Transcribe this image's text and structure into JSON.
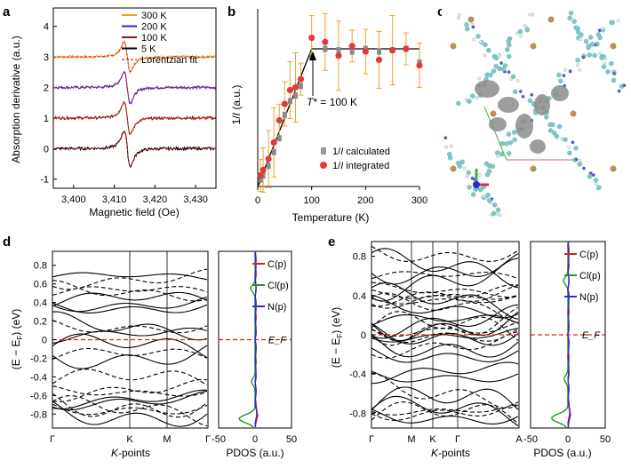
{
  "chart_data": [
    {
      "panel": "a",
      "type": "line",
      "xlabel": "Magnetic field (Oe)",
      "ylabel": "Absorption derivative (a.u.)",
      "xlim": [
        3395,
        3435
      ],
      "ylim": [
        -1.3,
        4.6
      ],
      "xticks": [
        "3,400",
        "3,410",
        "3,420",
        "3,430"
      ],
      "yticks": [
        "-1",
        "0",
        "1",
        "2",
        "3",
        "4"
      ],
      "legend": [
        "300 K",
        "200 K",
        "100 K",
        "5 K",
        "Lorentzian fit"
      ],
      "series": [
        {
          "name": "300 K",
          "color": "#f39c24",
          "baseline": 3.0,
          "amplitude": 0.95
        },
        {
          "name": "200 K",
          "color": "#2a2ad6",
          "baseline": 2.0,
          "amplitude": 1.0
        },
        {
          "name": "100 K",
          "color": "#8b1a1a",
          "baseline": 1.0,
          "amplitude": 1.05
        },
        {
          "name": "5 K",
          "color": "#000000",
          "baseline": 0.0,
          "amplitude": 1.15
        },
        {
          "name": "Lorentzian fit",
          "color": "#e02020",
          "style": "dashed"
        }
      ],
      "center_field": 3413.2
    },
    {
      "panel": "b",
      "type": "scatter",
      "xlabel": "Temperature (K)",
      "ylabel": "1/I (a.u.)",
      "xlim": [
        0,
        300
      ],
      "xticks": [
        "0",
        "100",
        "200",
        "300"
      ],
      "annotation": "T* = 100 K",
      "legend": [
        "1/I calculated",
        "1/I integrated"
      ],
      "calculated": {
        "x": [
          5,
          10,
          20,
          30,
          40,
          50,
          60,
          70,
          80,
          100,
          125,
          150,
          175,
          200,
          225,
          250,
          275,
          300
        ],
        "y": [
          0.05,
          0.08,
          0.15,
          0.25,
          0.35,
          0.52,
          0.62,
          0.66,
          0.73,
          0.95,
          1.0,
          0.99,
          0.98,
          1.0,
          0.98,
          0.99,
          1.0,
          0.9
        ]
      },
      "integrated": {
        "x": [
          5,
          10,
          20,
          30,
          40,
          50,
          60,
          70,
          80,
          100,
          125,
          150,
          175,
          200,
          225,
          250,
          275,
          300
        ],
        "y": [
          0.08,
          0.12,
          0.2,
          0.32,
          0.48,
          0.6,
          0.7,
          0.72,
          0.78,
          1.08,
          1.05,
          0.95,
          1.02,
          0.98,
          0.92,
          0.99,
          1.0,
          0.88
        ]
      },
      "fit_line": {
        "x": [
          0,
          100,
          300
        ],
        "y": [
          0.0,
          1.0,
          1.0
        ]
      }
    },
    {
      "panel": "d",
      "type": "line",
      "subtype": "band-structure",
      "xlabel": "K-points",
      "ylabel": "(E − E_F) (eV)",
      "ylim": [
        -0.95,
        0.95
      ],
      "yticks": [
        "0.8",
        "0.6",
        "0.4",
        "0.2",
        "0",
        "-0.2",
        "-0.4",
        "-0.6",
        "-0.8"
      ],
      "kpoints": [
        "Γ",
        "K",
        "M",
        "Γ"
      ],
      "fermi_label": "E_F",
      "pdos_xlabel": "PDOS (a.u.)",
      "pdos_xticks": [
        "-50",
        "0",
        "50"
      ],
      "pdos_legend": [
        "C(p)",
        "Cl(p)",
        "N(p)"
      ],
      "pdos_colors": [
        "#e02020",
        "#1f9a1f",
        "#2a2ad6"
      ]
    },
    {
      "panel": "e",
      "type": "line",
      "subtype": "band-structure",
      "xlabel": "K-points",
      "ylabel": "(E − E_F) (eV)",
      "ylim": [
        -0.95,
        0.95
      ],
      "yticks": [
        "0.8",
        "0.4",
        "0",
        "-0.4",
        "-0.8"
      ],
      "kpoints": [
        "Γ",
        "M",
        "K",
        "Γ",
        "A"
      ],
      "fermi_label": "E_F",
      "pdos_xlabel": "PDOS (a.u.)",
      "pdos_xticks": [
        "-50",
        "0",
        "50"
      ],
      "pdos_legend": [
        "C(p)",
        "Cl(p)",
        "N(p)"
      ],
      "pdos_colors": [
        "#e02020",
        "#1f9a1f",
        "#2a2ad6"
      ]
    }
  ],
  "panel_letters": [
    "a",
    "b",
    "c",
    "d",
    "e"
  ],
  "text": {
    "a_xlabel": "Magnetic field (Oe)",
    "a_ylabel": "Absorption derivative (a.u.)",
    "b_xlabel": "Temperature (K)",
    "b_ylabel_main": "1/",
    "b_ylabel_italic": "I",
    "b_ylabel_tail": " (a.u.)",
    "b_annot_T": "T",
    "b_annot_rest": "* = 100 K",
    "b_leg_calc": "1/",
    "b_leg_I": "I",
    "b_leg_calc_tail": " calculated",
    "b_leg_int_tail": " integrated",
    "d_xlabel_k": "K",
    "d_xlabel_rest": "-points",
    "pdos_label": "PDOS (a.u.)",
    "ylabel_band": "(E − E",
    "ylabel_band_sub": "F",
    "ylabel_band_tail": ") (eV)"
  }
}
